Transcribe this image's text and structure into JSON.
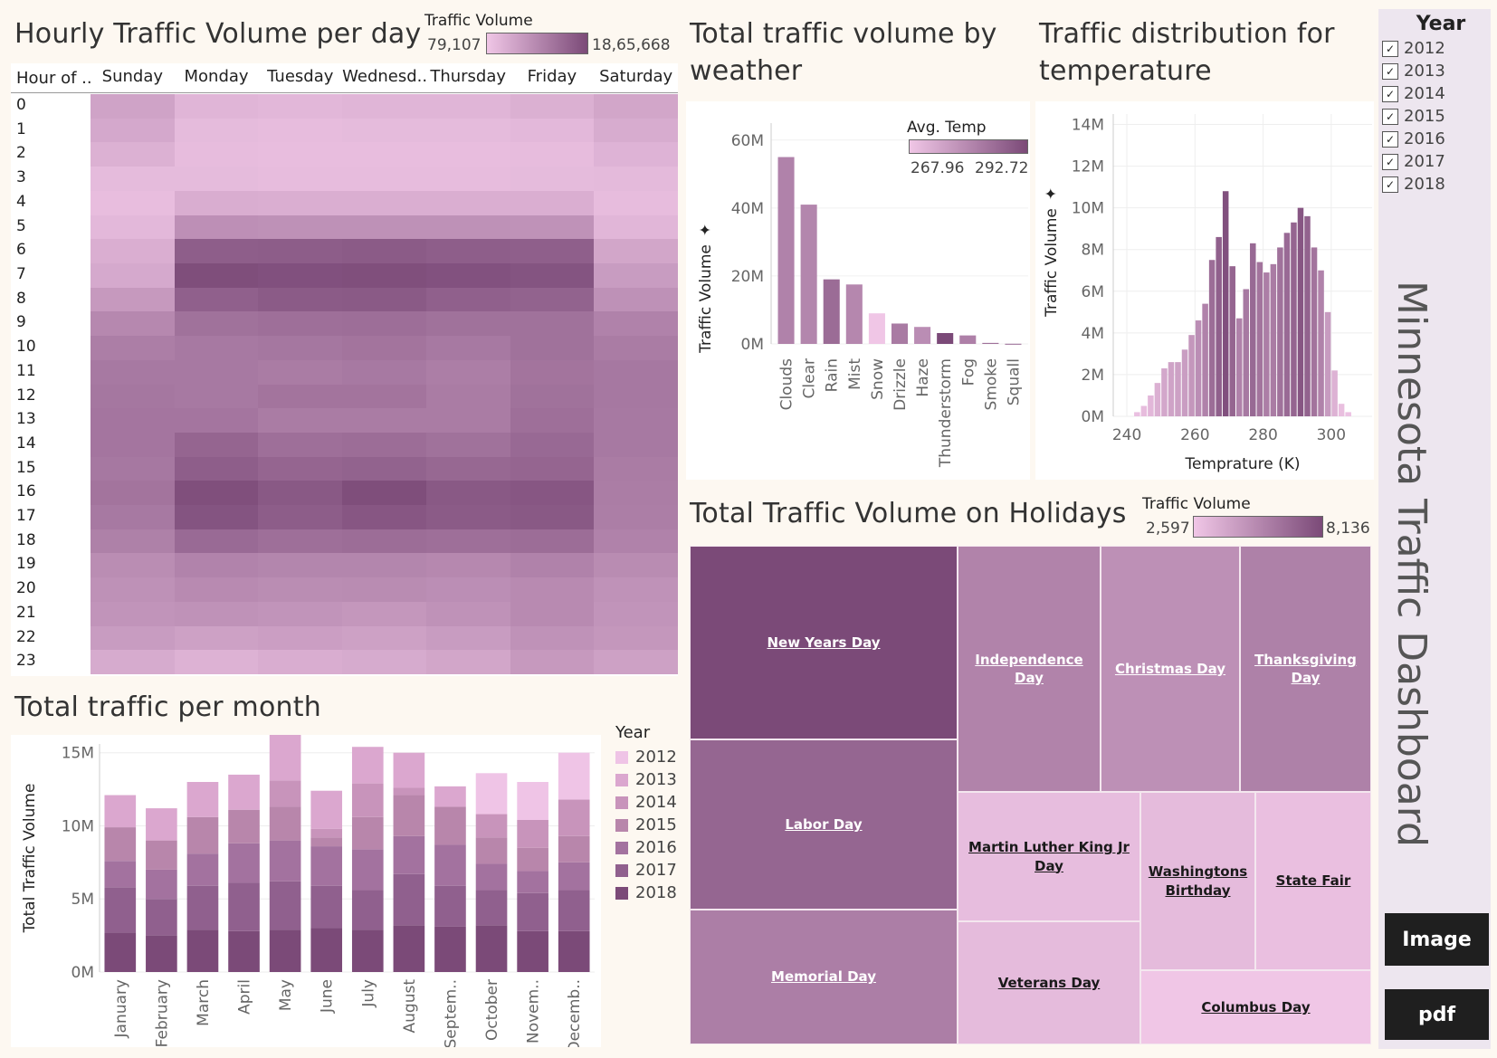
{
  "dashboard": {
    "title": "Minnesota Traffic Dashboard",
    "buttons": {
      "image": "Image",
      "pdf": "pdf"
    },
    "year_filter": {
      "title": "Year",
      "options": [
        "2012",
        "2013",
        "2014",
        "2015",
        "2016",
        "2017",
        "2018"
      ],
      "checked": [
        true,
        true,
        true,
        true,
        true,
        true,
        true
      ],
      "check_glyph": "✓"
    }
  },
  "heatmap": {
    "title": "Hourly Traffic Volume per day",
    "legend": {
      "title": "Traffic Volume",
      "min": "79,107",
      "max": "18,65,668",
      "color_low": "#f0c6e6",
      "color_high": "#7b4a78"
    },
    "corner_header": "Hour of ..",
    "day_headers": [
      "Sunday",
      "Monday",
      "Tuesday",
      "Wednesd..",
      "Thursday",
      "Friday",
      "Saturday"
    ]
  },
  "monthly": {
    "title": "Total traffic per month",
    "legend_title": "Year",
    "ylabel": "Total Traffic Volume"
  },
  "weather": {
    "title_line1": "Total traffic volume by",
    "title_line2": "weather",
    "legend": {
      "title": "Avg. Temp",
      "min": "267.96",
      "max": "292.72"
    },
    "ylabel": "Traffic Volume"
  },
  "temperature": {
    "title_line1": "Traffic distribution for",
    "title_line2": "temperature",
    "ylabel": "Traffic Volume",
    "xlabel": "Temprature (K)"
  },
  "holidays": {
    "title": "Total Traffic Volume on Holidays",
    "legend": {
      "title": "Traffic Volume",
      "min": "2,597",
      "max": "8,136"
    }
  },
  "chart_data": [
    {
      "id": "hourly_heatmap",
      "type": "heatmap",
      "title": "Hourly Traffic Volume per day",
      "x_categories": [
        "Sunday",
        "Monday",
        "Tuesday",
        "Wednesd..",
        "Thursday",
        "Friday",
        "Saturday"
      ],
      "y_categories": [
        "0",
        "1",
        "2",
        "3",
        "4",
        "5",
        "6",
        "7",
        "8",
        "9",
        "10",
        "11",
        "12",
        "13",
        "14",
        "15",
        "16",
        "17",
        "18",
        "19",
        "20",
        "21",
        "22",
        "23"
      ],
      "color_range": [
        79107,
        1865668
      ],
      "intensity": [
        [
          0.28,
          0.14,
          0.12,
          0.14,
          0.14,
          0.18,
          0.26
        ],
        [
          0.24,
          0.09,
          0.08,
          0.09,
          0.09,
          0.11,
          0.21
        ],
        [
          0.17,
          0.08,
          0.07,
          0.07,
          0.07,
          0.08,
          0.15
        ],
        [
          0.09,
          0.09,
          0.08,
          0.08,
          0.08,
          0.09,
          0.1
        ],
        [
          0.07,
          0.2,
          0.19,
          0.19,
          0.19,
          0.19,
          0.08
        ],
        [
          0.11,
          0.44,
          0.43,
          0.43,
          0.43,
          0.42,
          0.13
        ],
        [
          0.19,
          0.84,
          0.85,
          0.86,
          0.84,
          0.83,
          0.26
        ],
        [
          0.23,
          0.97,
          0.95,
          0.96,
          0.94,
          0.92,
          0.34
        ],
        [
          0.36,
          0.82,
          0.86,
          0.87,
          0.82,
          0.8,
          0.43
        ],
        [
          0.5,
          0.68,
          0.7,
          0.71,
          0.68,
          0.68,
          0.55
        ],
        [
          0.58,
          0.62,
          0.64,
          0.66,
          0.62,
          0.68,
          0.6
        ],
        [
          0.62,
          0.62,
          0.6,
          0.62,
          0.58,
          0.66,
          0.63
        ],
        [
          0.64,
          0.62,
          0.66,
          0.66,
          0.6,
          0.68,
          0.63
        ],
        [
          0.65,
          0.65,
          0.6,
          0.6,
          0.6,
          0.7,
          0.62
        ],
        [
          0.65,
          0.78,
          0.7,
          0.72,
          0.68,
          0.75,
          0.62
        ],
        [
          0.63,
          0.84,
          0.78,
          0.8,
          0.76,
          0.78,
          0.6
        ],
        [
          0.66,
          0.96,
          0.88,
          0.97,
          0.88,
          0.9,
          0.59
        ],
        [
          0.62,
          0.92,
          0.85,
          0.9,
          0.86,
          0.88,
          0.58
        ],
        [
          0.56,
          0.74,
          0.7,
          0.72,
          0.7,
          0.72,
          0.55
        ],
        [
          0.46,
          0.54,
          0.52,
          0.52,
          0.5,
          0.55,
          0.47
        ],
        [
          0.43,
          0.48,
          0.46,
          0.47,
          0.45,
          0.48,
          0.42
        ],
        [
          0.4,
          0.42,
          0.4,
          0.38,
          0.42,
          0.48,
          0.4
        ],
        [
          0.34,
          0.3,
          0.32,
          0.3,
          0.34,
          0.42,
          0.38
        ],
        [
          0.22,
          0.16,
          0.2,
          0.22,
          0.26,
          0.36,
          0.3
        ]
      ]
    },
    {
      "id": "traffic_per_month",
      "type": "bar",
      "stacked": true,
      "title": "Total traffic per month",
      "ylabel": "Total Traffic Volume",
      "categories": [
        "January",
        "February",
        "March",
        "April",
        "May",
        "June",
        "July",
        "August",
        "Septem..",
        "October",
        "Novem..",
        "Decemb.."
      ],
      "ylim": [
        0,
        15.6
      ],
      "yticks": [
        "0M",
        "5M",
        "10M",
        "15M"
      ],
      "series": [
        {
          "name": "2018",
          "color": "#7b4a78",
          "values": [
            2.7,
            2.5,
            2.9,
            2.8,
            2.9,
            3.0,
            2.9,
            3.2,
            3.1,
            3.2,
            2.8,
            2.8
          ]
        },
        {
          "name": "2017",
          "color": "#90608e",
          "values": [
            3.1,
            2.5,
            3.0,
            3.3,
            3.3,
            2.9,
            2.7,
            3.5,
            2.8,
            2.4,
            2.6,
            2.8
          ]
        },
        {
          "name": "2016",
          "color": "#a3729f",
          "values": [
            1.8,
            2.0,
            2.2,
            2.7,
            2.8,
            2.7,
            2.8,
            2.6,
            2.8,
            1.8,
            1.5,
            1.9
          ]
        },
        {
          "name": "2015",
          "color": "#b886ab",
          "values": [
            2.3,
            2.0,
            2.5,
            2.3,
            2.3,
            0.6,
            2.2,
            2.8,
            2.6,
            1.8,
            1.6,
            1.8
          ]
        },
        {
          "name": "2014",
          "color": "#c894bb",
          "values": [
            0,
            0,
            0,
            0,
            1.8,
            0.6,
            2.3,
            0.5,
            0,
            1.6,
            1.9,
            2.5
          ]
        },
        {
          "name": "2013",
          "color": "#dba7cf",
          "values": [
            2.2,
            2.2,
            2.4,
            2.4,
            3.2,
            2.6,
            2.5,
            2.4,
            1.4,
            0,
            0,
            0
          ]
        },
        {
          "name": "2012",
          "color": "#efc4e6",
          "values": [
            0,
            0,
            0,
            0,
            0,
            0,
            0,
            0,
            0,
            2.8,
            2.6,
            3.2
          ]
        }
      ]
    },
    {
      "id": "traffic_by_weather",
      "type": "bar",
      "title": "Total traffic volume by weather",
      "ylabel": "Traffic Volume",
      "categories": [
        "Clouds",
        "Clear",
        "Rain",
        "Mist",
        "Snow",
        "Drizzle",
        "Haze",
        "Thunderstorm",
        "Fog",
        "Smoke",
        "Squall"
      ],
      "values": [
        55,
        41,
        19,
        17.5,
        9,
        6,
        5,
        3.2,
        2.5,
        0.3,
        0.05
      ],
      "avg_temp": [
        281.5,
        280.8,
        286.0,
        280.5,
        267.96,
        283.0,
        279.3,
        292.72,
        282.0,
        285.0,
        287.0
      ],
      "ylim": [
        0,
        65
      ],
      "yticks": [
        "0M",
        "20M",
        "40M",
        "60M"
      ]
    },
    {
      "id": "temperature_distribution",
      "type": "bar",
      "title": "Traffic distribution for temperature",
      "xlabel": "Temprature (K)",
      "ylabel": "Traffic Volume",
      "bin_width": 2,
      "bin_start": 242,
      "values": [
        0.2,
        0.5,
        1.0,
        1.6,
        2.3,
        2.6,
        2.6,
        3.2,
        3.9,
        4.6,
        5.4,
        7.5,
        8.6,
        10.8,
        7.2,
        4.7,
        6.1,
        8.3,
        7.4,
        6.9,
        7.3,
        8.1,
        8.8,
        9.3,
        10.0,
        9.6,
        8.1,
        7.0,
        5.0,
        2.2,
        0.6,
        0.2
      ],
      "intensity": [
        0.05,
        0.08,
        0.12,
        0.18,
        0.25,
        0.28,
        0.3,
        0.33,
        0.38,
        0.45,
        0.55,
        0.72,
        0.82,
        0.95,
        0.78,
        0.55,
        0.62,
        0.75,
        0.66,
        0.58,
        0.6,
        0.68,
        0.74,
        0.78,
        0.9,
        0.8,
        0.66,
        0.55,
        0.35,
        0.16,
        0.06,
        0.03
      ],
      "xticks": [
        "240",
        "260",
        "280",
        "300"
      ],
      "yticks": [
        "0M",
        "2M",
        "4M",
        "6M",
        "8M",
        "10M",
        "12M",
        "14M"
      ],
      "ylim": [
        0,
        14.5
      ],
      "xlim": [
        236,
        312
      ]
    },
    {
      "id": "holidays_treemap",
      "type": "treemap",
      "title": "Total Traffic Volume on Holidays",
      "items": [
        {
          "label": "New Years Day",
          "value": 8136
        },
        {
          "label": "Labor Day",
          "value": 6900
        },
        {
          "label": "Memorial Day",
          "value": 5800
        },
        {
          "label": "Independence Day",
          "value": 5600
        },
        {
          "label": "Christmas Day",
          "value": 5000
        },
        {
          "label": "Thanksgiving Day",
          "value": 5700
        },
        {
          "label": "Martin Luther King Jr Day",
          "value": 3000
        },
        {
          "label": "Washingtons Birthday",
          "value": 3100
        },
        {
          "label": "State Fair",
          "value": 2900
        },
        {
          "label": "Veterans Day",
          "value": 3100
        },
        {
          "label": "Columbus Day",
          "value": 2597
        }
      ]
    }
  ]
}
